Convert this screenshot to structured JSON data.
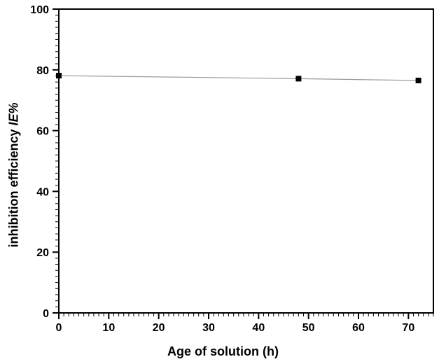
{
  "chart_data": {
    "type": "line",
    "title": "",
    "xlabel": "Age of solution (h)",
    "ylabel": "inhibition efficiency IE%",
    "ylabel_plain": "inhibition efficiency",
    "ylabel_italic": "IE%",
    "x": [
      0,
      48,
      72
    ],
    "y": [
      78.1,
      77.1,
      76.5
    ],
    "xlim": [
      0,
      75
    ],
    "ylim": [
      0,
      100
    ],
    "x_major_ticks": [
      0,
      10,
      20,
      30,
      40,
      50,
      60,
      70
    ],
    "x_minor_step": 1,
    "y_major_ticks": [
      0,
      20,
      40,
      60,
      80,
      100
    ],
    "y_minor_step": 2,
    "marker": "filled-square",
    "marker_color": "#000000",
    "line_color": "#999999",
    "axis_color": "#000000",
    "background": "#ffffff",
    "grid": false,
    "legend": "none"
  }
}
